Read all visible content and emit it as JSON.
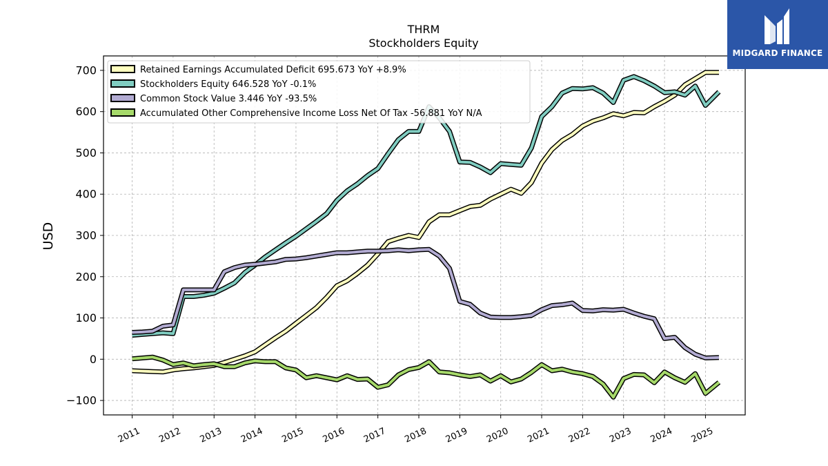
{
  "title": {
    "line1": "THRM",
    "line2": "Stockholders  Equity"
  },
  "logo": {
    "text": "MIDGARD FINANCE",
    "icon": "midgard-logo-icon"
  },
  "chart_data": {
    "type": "line",
    "ylabel": "USD",
    "ylim": [
      -135,
      735
    ],
    "xlim": [
      2010.3,
      2025.97
    ],
    "yticks": [
      -100,
      0,
      100,
      200,
      300,
      400,
      500,
      600,
      700
    ],
    "ytick_labels": [
      "−100",
      "0",
      "100",
      "200",
      "300",
      "400",
      "500",
      "600",
      "700"
    ],
    "xticks": [
      2011,
      2012,
      2013,
      2014,
      2015,
      2016,
      2017,
      2018,
      2019,
      2020,
      2021,
      2022,
      2023,
      2024,
      2025
    ],
    "xtick_labels": [
      "2011",
      "2012",
      "2013",
      "2014",
      "2015",
      "2016",
      "2017",
      "2018",
      "2019",
      "2020",
      "2021",
      "2022",
      "2023",
      "2024",
      "2025"
    ],
    "grid": true,
    "legend_position": "top-left",
    "series": [
      {
        "name": "Retained Earnings Accumulated Deficit",
        "legend": "Retained Earnings Accumulated Deficit  695.673 YoY +8.9%",
        "color": "#ffffbf",
        "points": [
          [
            2011.0,
            -28
          ],
          [
            2011.25,
            -29
          ],
          [
            2011.5,
            -30
          ],
          [
            2011.75,
            -31
          ],
          [
            2012.0,
            -26
          ],
          [
            2012.25,
            -23
          ],
          [
            2012.5,
            -21
          ],
          [
            2012.75,
            -18
          ],
          [
            2013.0,
            -15
          ],
          [
            2013.25,
            -8
          ],
          [
            2013.5,
            0
          ],
          [
            2013.75,
            8
          ],
          [
            2014.0,
            18
          ],
          [
            2014.25,
            35
          ],
          [
            2014.5,
            52
          ],
          [
            2014.75,
            68
          ],
          [
            2015.0,
            87
          ],
          [
            2015.25,
            106
          ],
          [
            2015.5,
            125
          ],
          [
            2015.75,
            150
          ],
          [
            2016.0,
            178
          ],
          [
            2016.25,
            190
          ],
          [
            2016.5,
            208
          ],
          [
            2016.75,
            228
          ],
          [
            2017.0,
            255
          ],
          [
            2017.25,
            285
          ],
          [
            2017.5,
            293
          ],
          [
            2017.75,
            300
          ],
          [
            2018.0,
            295
          ],
          [
            2018.25,
            333
          ],
          [
            2018.5,
            350
          ],
          [
            2018.75,
            350
          ],
          [
            2019.0,
            360
          ],
          [
            2019.25,
            370
          ],
          [
            2019.5,
            373
          ],
          [
            2019.75,
            388
          ],
          [
            2020.0,
            400
          ],
          [
            2020.25,
            412
          ],
          [
            2020.5,
            402
          ],
          [
            2020.75,
            428
          ],
          [
            2021.0,
            475
          ],
          [
            2021.25,
            508
          ],
          [
            2021.5,
            530
          ],
          [
            2021.75,
            545
          ],
          [
            2022.0,
            565
          ],
          [
            2022.25,
            577
          ],
          [
            2022.5,
            585
          ],
          [
            2022.75,
            595
          ],
          [
            2023.0,
            590
          ],
          [
            2023.25,
            598
          ],
          [
            2023.5,
            597
          ],
          [
            2023.75,
            612
          ],
          [
            2024.0,
            625
          ],
          [
            2024.25,
            640
          ],
          [
            2024.5,
            665
          ],
          [
            2024.75,
            680
          ],
          [
            2025.0,
            695
          ],
          [
            2025.33,
            695
          ]
        ]
      },
      {
        "name": "Stockholders Equity",
        "legend": "Stockholders Equity  646.528 YoY -0.1%",
        "color": "#80cdc1",
        "points": [
          [
            2011.0,
            58
          ],
          [
            2011.25,
            60
          ],
          [
            2011.5,
            62
          ],
          [
            2011.75,
            64
          ],
          [
            2012.0,
            62
          ],
          [
            2012.25,
            152
          ],
          [
            2012.5,
            152
          ],
          [
            2012.75,
            155
          ],
          [
            2013.0,
            160
          ],
          [
            2013.25,
            172
          ],
          [
            2013.5,
            185
          ],
          [
            2013.75,
            210
          ],
          [
            2014.0,
            228
          ],
          [
            2014.25,
            248
          ],
          [
            2014.5,
            265
          ],
          [
            2014.75,
            282
          ],
          [
            2015.0,
            298
          ],
          [
            2015.25,
            316
          ],
          [
            2015.5,
            334
          ],
          [
            2015.75,
            353
          ],
          [
            2016.0,
            385
          ],
          [
            2016.25,
            408
          ],
          [
            2016.5,
            425
          ],
          [
            2016.75,
            445
          ],
          [
            2017.0,
            462
          ],
          [
            2017.25,
            498
          ],
          [
            2017.5,
            532
          ],
          [
            2017.75,
            552
          ],
          [
            2018.0,
            552
          ],
          [
            2018.25,
            612
          ],
          [
            2018.5,
            585
          ],
          [
            2018.75,
            552
          ],
          [
            2019.0,
            478
          ],
          [
            2019.25,
            477
          ],
          [
            2019.5,
            466
          ],
          [
            2019.75,
            452
          ],
          [
            2020.0,
            474
          ],
          [
            2020.25,
            472
          ],
          [
            2020.5,
            470
          ],
          [
            2020.75,
            512
          ],
          [
            2021.0,
            588
          ],
          [
            2021.25,
            612
          ],
          [
            2021.5,
            645
          ],
          [
            2021.75,
            656
          ],
          [
            2022.0,
            655
          ],
          [
            2022.25,
            658
          ],
          [
            2022.5,
            645
          ],
          [
            2022.75,
            622
          ],
          [
            2023.0,
            676
          ],
          [
            2023.25,
            685
          ],
          [
            2023.5,
            675
          ],
          [
            2023.75,
            662
          ],
          [
            2024.0,
            646
          ],
          [
            2024.25,
            648
          ],
          [
            2024.5,
            640
          ],
          [
            2024.75,
            662
          ],
          [
            2025.0,
            615
          ],
          [
            2025.33,
            648
          ]
        ]
      },
      {
        "name": "Common Stock Value",
        "legend": "Common Stock Value  3.446 YoY -93.5%",
        "color": "#b2abd2",
        "points": [
          [
            2011.0,
            65
          ],
          [
            2011.25,
            66
          ],
          [
            2011.5,
            68
          ],
          [
            2011.75,
            80
          ],
          [
            2012.0,
            83
          ],
          [
            2012.25,
            168
          ],
          [
            2012.5,
            168
          ],
          [
            2012.75,
            168
          ],
          [
            2013.0,
            168
          ],
          [
            2013.25,
            212
          ],
          [
            2013.5,
            222
          ],
          [
            2013.75,
            228
          ],
          [
            2014.0,
            230
          ],
          [
            2014.25,
            233
          ],
          [
            2014.5,
            236
          ],
          [
            2014.75,
            242
          ],
          [
            2015.0,
            243
          ],
          [
            2015.25,
            246
          ],
          [
            2015.5,
            250
          ],
          [
            2015.75,
            254
          ],
          [
            2016.0,
            258
          ],
          [
            2016.25,
            258
          ],
          [
            2016.5,
            260
          ],
          [
            2016.75,
            262
          ],
          [
            2017.0,
            262
          ],
          [
            2017.25,
            263
          ],
          [
            2017.5,
            265
          ],
          [
            2017.75,
            263
          ],
          [
            2018.0,
            265
          ],
          [
            2018.25,
            266
          ],
          [
            2018.5,
            250
          ],
          [
            2018.75,
            220
          ],
          [
            2019.0,
            140
          ],
          [
            2019.25,
            133
          ],
          [
            2019.5,
            112
          ],
          [
            2019.75,
            102
          ],
          [
            2020.0,
            101
          ],
          [
            2020.25,
            101
          ],
          [
            2020.5,
            103
          ],
          [
            2020.75,
            106
          ],
          [
            2021.0,
            120
          ],
          [
            2021.25,
            130
          ],
          [
            2021.5,
            132
          ],
          [
            2021.75,
            136
          ],
          [
            2022.0,
            118
          ],
          [
            2022.25,
            117
          ],
          [
            2022.5,
            120
          ],
          [
            2022.75,
            119
          ],
          [
            2023.0,
            121
          ],
          [
            2023.25,
            112
          ],
          [
            2023.5,
            104
          ],
          [
            2023.75,
            98
          ],
          [
            2024.0,
            50
          ],
          [
            2024.25,
            53
          ],
          [
            2024.5,
            28
          ],
          [
            2024.75,
            12
          ],
          [
            2025.0,
            3
          ],
          [
            2025.33,
            4
          ]
        ]
      },
      {
        "name": "Accumulated Other Comprehensive Income Loss Net Of Tax",
        "legend": "Accumulated Other Comprehensive Income Loss Net Of Tax  -56.881 YoY N/A",
        "color": "#a6d96a",
        "points": [
          [
            2011.0,
            1
          ],
          [
            2011.25,
            3
          ],
          [
            2011.5,
            5
          ],
          [
            2011.75,
            -2
          ],
          [
            2012.0,
            -13
          ],
          [
            2012.25,
            -9
          ],
          [
            2012.5,
            -16
          ],
          [
            2012.75,
            -13
          ],
          [
            2013.0,
            -11
          ],
          [
            2013.25,
            -18
          ],
          [
            2013.5,
            -18
          ],
          [
            2013.75,
            -9
          ],
          [
            2014.0,
            -4
          ],
          [
            2014.25,
            -6
          ],
          [
            2014.5,
            -6
          ],
          [
            2014.75,
            -21
          ],
          [
            2015.0,
            -26
          ],
          [
            2015.25,
            -45
          ],
          [
            2015.5,
            -40
          ],
          [
            2015.75,
            -45
          ],
          [
            2016.0,
            -50
          ],
          [
            2016.25,
            -40
          ],
          [
            2016.5,
            -49
          ],
          [
            2016.75,
            -48
          ],
          [
            2017.0,
            -68
          ],
          [
            2017.25,
            -62
          ],
          [
            2017.5,
            -38
          ],
          [
            2017.75,
            -25
          ],
          [
            2018.0,
            -20
          ],
          [
            2018.25,
            -6
          ],
          [
            2018.5,
            -31
          ],
          [
            2018.75,
            -33
          ],
          [
            2019.0,
            -38
          ],
          [
            2019.25,
            -42
          ],
          [
            2019.5,
            -38
          ],
          [
            2019.75,
            -53
          ],
          [
            2020.0,
            -40
          ],
          [
            2020.25,
            -55
          ],
          [
            2020.5,
            -48
          ],
          [
            2020.75,
            -32
          ],
          [
            2021.0,
            -13
          ],
          [
            2021.25,
            -28
          ],
          [
            2021.5,
            -24
          ],
          [
            2021.75,
            -31
          ],
          [
            2022.0,
            -35
          ],
          [
            2022.25,
            -42
          ],
          [
            2022.5,
            -60
          ],
          [
            2022.75,
            -92
          ],
          [
            2023.0,
            -47
          ],
          [
            2023.25,
            -37
          ],
          [
            2023.5,
            -38
          ],
          [
            2023.75,
            -57
          ],
          [
            2024.0,
            -31
          ],
          [
            2024.25,
            -45
          ],
          [
            2024.5,
            -56
          ],
          [
            2024.75,
            -35
          ],
          [
            2025.0,
            -83
          ],
          [
            2025.33,
            -56
          ]
        ]
      }
    ]
  }
}
